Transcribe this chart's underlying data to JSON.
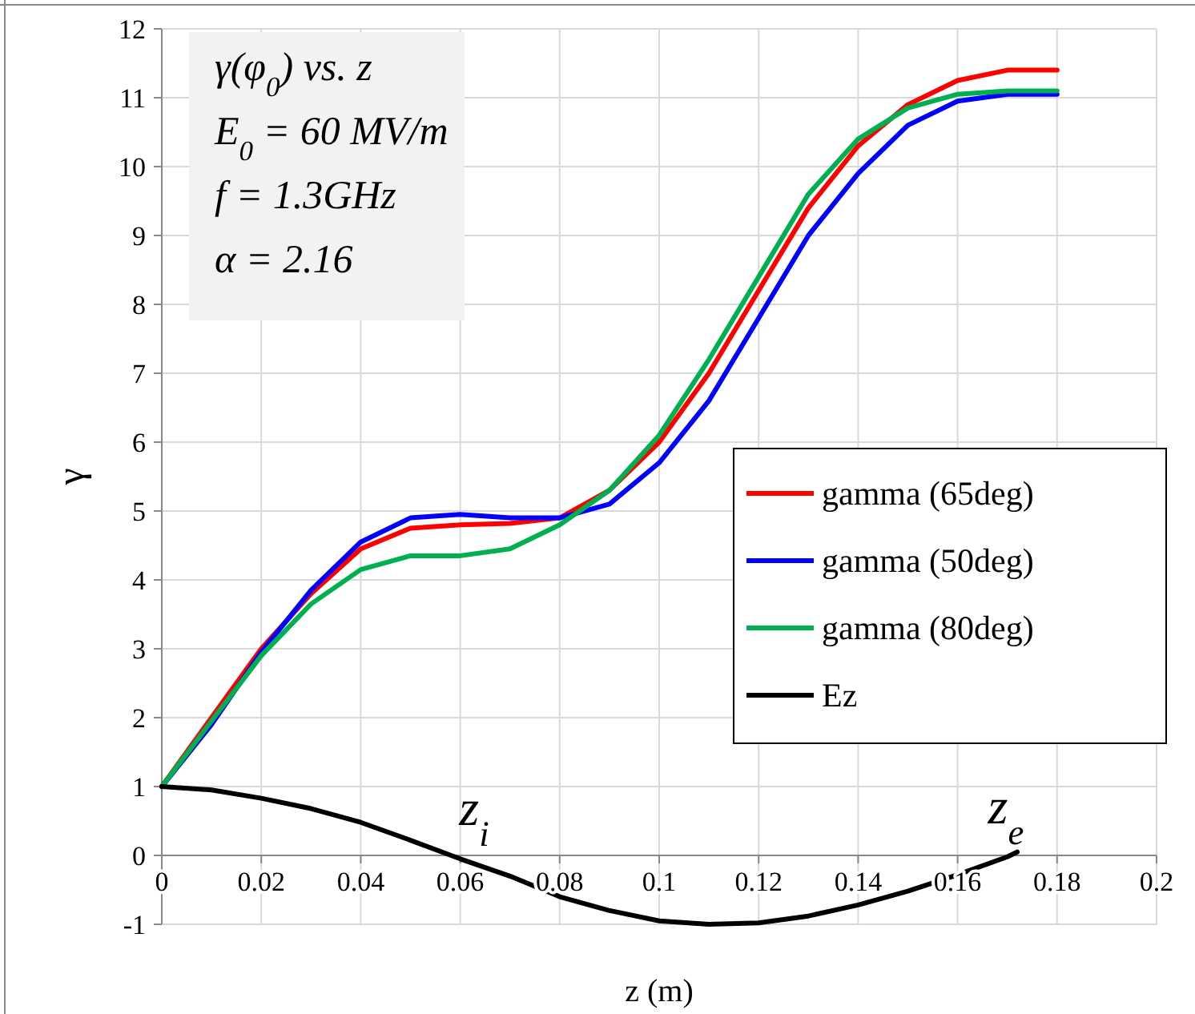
{
  "chart_data": {
    "type": "line",
    "xlabel": "z (m)",
    "ylabel": "γ",
    "x": [
      0,
      0.01,
      0.02,
      0.03,
      0.04,
      0.05,
      0.06,
      0.07,
      0.08,
      0.09,
      0.1,
      0.11,
      0.12,
      0.13,
      0.14,
      0.15,
      0.16,
      0.17,
      0.18
    ],
    "series": [
      {
        "name": "gamma (65deg)",
        "color": "#ff0000",
        "values": [
          1,
          2.0,
          3.0,
          3.8,
          4.45,
          4.75,
          4.8,
          4.82,
          4.9,
          5.3,
          6.0,
          7.0,
          8.2,
          9.4,
          10.3,
          10.9,
          11.25,
          11.4,
          11.4
        ]
      },
      {
        "name": "gamma (50deg)",
        "color": "#0000ff",
        "values": [
          1,
          1.9,
          2.95,
          3.85,
          4.55,
          4.9,
          4.95,
          4.9,
          4.9,
          5.1,
          5.7,
          6.6,
          7.8,
          9.0,
          9.9,
          10.6,
          10.95,
          11.05,
          11.05
        ]
      },
      {
        "name": "gamma (80deg)",
        "color": "#00b050",
        "values": [
          1,
          1.95,
          2.9,
          3.65,
          4.15,
          4.35,
          4.35,
          4.45,
          4.8,
          5.3,
          6.1,
          7.2,
          8.4,
          9.6,
          10.4,
          10.85,
          11.05,
          11.1,
          11.1
        ]
      },
      {
        "name": "Ez",
        "color": "#000000",
        "x": [
          0,
          0.01,
          0.02,
          0.03,
          0.04,
          0.05,
          0.06,
          0.07,
          0.08,
          0.09,
          0.1,
          0.11,
          0.12,
          0.13,
          0.14,
          0.15,
          0.16,
          0.17,
          0.172
        ],
        "values": [
          1,
          0.95,
          0.83,
          0.68,
          0.48,
          0.22,
          -0.05,
          -0.3,
          -0.6,
          -0.8,
          -0.95,
          -1.0,
          -0.98,
          -0.88,
          -0.72,
          -0.52,
          -0.28,
          -0.02,
          0.05
        ]
      }
    ],
    "xlim": [
      0,
      0.2
    ],
    "xticks": [
      0,
      0.02,
      0.04,
      0.06,
      0.08,
      0.1,
      0.12,
      0.14,
      0.16,
      0.18,
      0.2
    ],
    "ylim": [
      -1,
      12
    ],
    "yticks": [
      -1,
      0,
      1,
      2,
      3,
      4,
      5,
      6,
      7,
      8,
      9,
      10,
      11,
      12
    ],
    "grid": true,
    "legend": "right",
    "marker": "none",
    "line_style": "solid",
    "annotations": [
      "γ(φ$_{0}$) vs. z",
      "E$_{0}$ = 60 MV/m",
      "f = 1.3GHz",
      "α = 2.16",
      "z$_{i}$",
      "z$_{e}$"
    ]
  }
}
